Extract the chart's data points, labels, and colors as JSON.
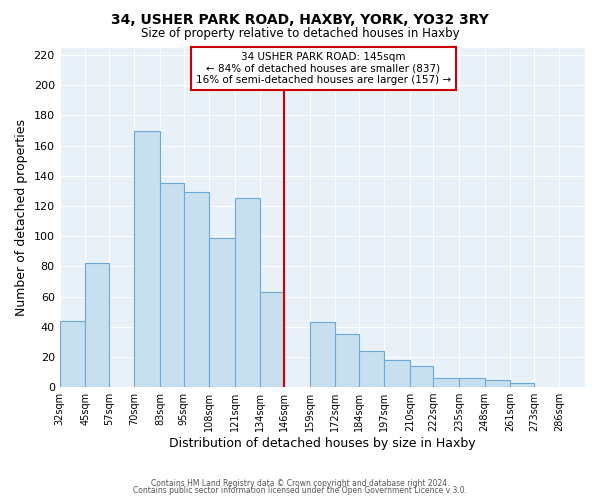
{
  "title": "34, USHER PARK ROAD, HAXBY, YORK, YO32 3RY",
  "subtitle": "Size of property relative to detached houses in Haxby",
  "xlabel": "Distribution of detached houses by size in Haxby",
  "ylabel": "Number of detached properties",
  "footer1": "Contains HM Land Registry data © Crown copyright and database right 2024.",
  "footer2": "Contains public sector information licensed under the Open Government Licence v 3.0.",
  "bin_labels": [
    "32sqm",
    "45sqm",
    "57sqm",
    "70sqm",
    "83sqm",
    "95sqm",
    "108sqm",
    "121sqm",
    "134sqm",
    "146sqm",
    "159sqm",
    "172sqm",
    "184sqm",
    "197sqm",
    "210sqm",
    "222sqm",
    "235sqm",
    "248sqm",
    "261sqm",
    "273sqm",
    "286sqm"
  ],
  "bar_heights": [
    44,
    82,
    0,
    170,
    135,
    129,
    99,
    125,
    63,
    0,
    43,
    35,
    24,
    18,
    14,
    6,
    6,
    5,
    3,
    0,
    0
  ],
  "bar_color": "#c8dff0",
  "bar_edge_color": "#6aaad4",
  "property_line_color": "#cc0000",
  "annotation_title": "34 USHER PARK ROAD: 145sqm",
  "annotation_line1": "← 84% of detached houses are smaller (837)",
  "annotation_line2": "16% of semi-detached houses are larger (157) →",
  "annotation_box_color": "white",
  "annotation_box_edge": "#cc0000",
  "bg_color": "#e8f0f8",
  "ylim_max": 225,
  "yticks": [
    0,
    20,
    40,
    60,
    80,
    100,
    120,
    140,
    160,
    180,
    200,
    220
  ]
}
